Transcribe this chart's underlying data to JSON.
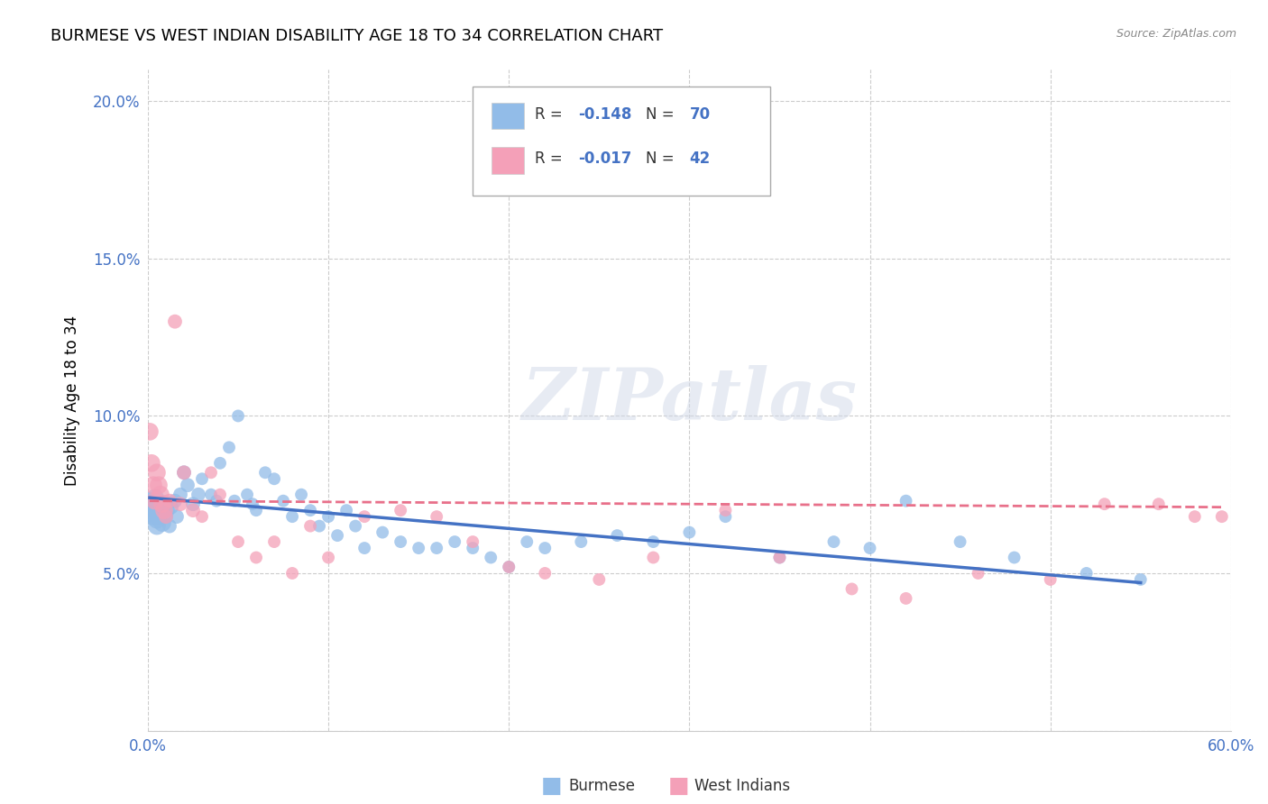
{
  "title": "BURMESE VS WEST INDIAN DISABILITY AGE 18 TO 34 CORRELATION CHART",
  "source": "Source: ZipAtlas.com",
  "ylabel_label": "Disability Age 18 to 34",
  "watermark": "ZIPatlas",
  "xmin": 0.0,
  "xmax": 0.6,
  "ymin": 0.0,
  "ymax": 0.21,
  "xtick_positions": [
    0.0,
    0.1,
    0.2,
    0.3,
    0.4,
    0.5,
    0.6
  ],
  "xtick_labels": [
    "0.0%",
    "",
    "",
    "",
    "",
    "",
    "60.0%"
  ],
  "ytick_positions": [
    0.0,
    0.05,
    0.1,
    0.15,
    0.2
  ],
  "ytick_labels": [
    "",
    "5.0%",
    "10.0%",
    "15.0%",
    "20.0%"
  ],
  "burmese_color": "#92bce8",
  "west_indian_color": "#f4a0b8",
  "burmese_R": "-0.148",
  "burmese_N": "70",
  "west_indian_R": "-0.017",
  "west_indian_N": "42",
  "trend_burmese_color": "#4472c4",
  "trend_west_indian_color": "#e8708a",
  "background_color": "#ffffff",
  "grid_color": "#cccccc",
  "tick_color": "#4472c4",
  "burmese_x": [
    0.001,
    0.002,
    0.002,
    0.003,
    0.003,
    0.004,
    0.004,
    0.005,
    0.005,
    0.006,
    0.006,
    0.007,
    0.008,
    0.009,
    0.01,
    0.011,
    0.012,
    0.013,
    0.015,
    0.016,
    0.018,
    0.02,
    0.022,
    0.025,
    0.028,
    0.03,
    0.035,
    0.038,
    0.04,
    0.045,
    0.048,
    0.05,
    0.055,
    0.058,
    0.06,
    0.065,
    0.07,
    0.075,
    0.08,
    0.085,
    0.09,
    0.095,
    0.1,
    0.105,
    0.11,
    0.115,
    0.12,
    0.13,
    0.14,
    0.15,
    0.16,
    0.17,
    0.18,
    0.19,
    0.2,
    0.21,
    0.22,
    0.24,
    0.26,
    0.28,
    0.3,
    0.32,
    0.35,
    0.38,
    0.4,
    0.42,
    0.45,
    0.48,
    0.52,
    0.55
  ],
  "burmese_y": [
    0.073,
    0.069,
    0.072,
    0.071,
    0.068,
    0.07,
    0.074,
    0.065,
    0.067,
    0.071,
    0.068,
    0.069,
    0.066,
    0.072,
    0.068,
    0.07,
    0.065,
    0.071,
    0.073,
    0.068,
    0.075,
    0.082,
    0.078,
    0.072,
    0.075,
    0.08,
    0.075,
    0.073,
    0.085,
    0.09,
    0.073,
    0.1,
    0.075,
    0.072,
    0.07,
    0.082,
    0.08,
    0.073,
    0.068,
    0.075,
    0.07,
    0.065,
    0.068,
    0.062,
    0.07,
    0.065,
    0.058,
    0.063,
    0.06,
    0.058,
    0.058,
    0.06,
    0.058,
    0.055,
    0.052,
    0.06,
    0.058,
    0.06,
    0.062,
    0.06,
    0.063,
    0.068,
    0.055,
    0.06,
    0.058,
    0.073,
    0.06,
    0.055,
    0.05,
    0.048
  ],
  "west_indian_x": [
    0.001,
    0.002,
    0.003,
    0.004,
    0.005,
    0.006,
    0.007,
    0.008,
    0.009,
    0.01,
    0.012,
    0.015,
    0.018,
    0.02,
    0.025,
    0.03,
    0.035,
    0.04,
    0.05,
    0.06,
    0.07,
    0.08,
    0.09,
    0.1,
    0.12,
    0.14,
    0.16,
    0.18,
    0.2,
    0.22,
    0.25,
    0.28,
    0.32,
    0.35,
    0.39,
    0.42,
    0.46,
    0.5,
    0.53,
    0.56,
    0.58,
    0.595
  ],
  "west_indian_y": [
    0.095,
    0.085,
    0.078,
    0.073,
    0.082,
    0.078,
    0.075,
    0.072,
    0.07,
    0.068,
    0.073,
    0.13,
    0.072,
    0.082,
    0.07,
    0.068,
    0.082,
    0.075,
    0.06,
    0.055,
    0.06,
    0.05,
    0.065,
    0.055,
    0.068,
    0.07,
    0.068,
    0.06,
    0.052,
    0.05,
    0.048,
    0.055,
    0.07,
    0.055,
    0.045,
    0.042,
    0.05,
    0.048,
    0.072,
    0.072,
    0.068,
    0.068
  ],
  "burmese_trend_x": [
    0.001,
    0.55
  ],
  "burmese_trend_y_start": 0.074,
  "burmese_trend_y_end": 0.047,
  "west_indian_trend_x": [
    0.001,
    0.595
  ],
  "west_indian_trend_y_start": 0.073,
  "west_indian_trend_y_end": 0.071
}
